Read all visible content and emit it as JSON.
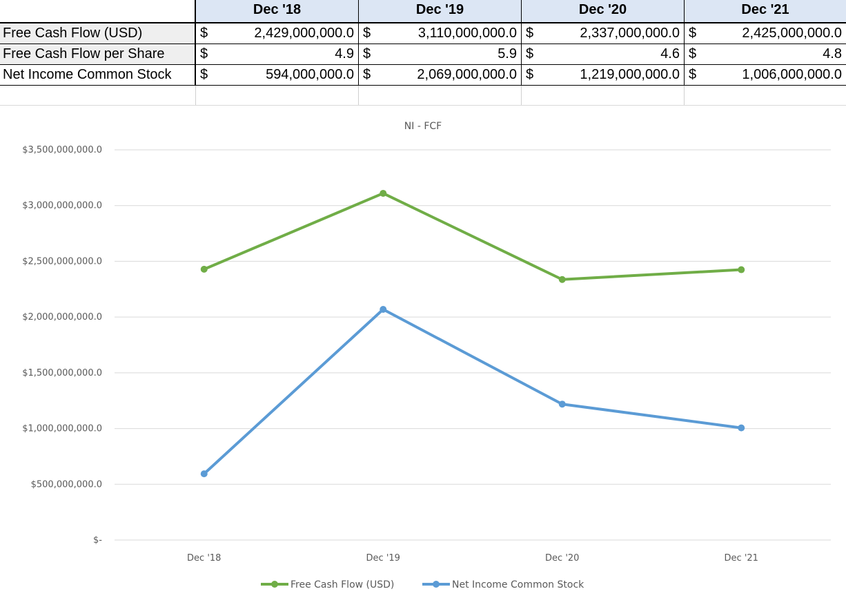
{
  "table": {
    "headers": [
      "Dec '18",
      "Dec '19",
      "Dec '20",
      "Dec '21"
    ],
    "currency_symbol": "$",
    "rows": [
      {
        "label": "Free Cash Flow (USD)",
        "values": [
          "2,429,000,000.0",
          "3,110,000,000.0",
          "2,337,000,000.0",
          "2,425,000,000.0"
        ]
      },
      {
        "label": "Free Cash Flow per Share",
        "values": [
          "4.9",
          "5.9",
          "4.6",
          "4.8"
        ]
      },
      {
        "label": "Net Income Common Stock",
        "values": [
          "594,000,000.0",
          "2,069,000,000.0",
          "1,219,000,000.0",
          "1,006,000,000.0"
        ]
      }
    ]
  },
  "chart_data": {
    "type": "line",
    "title": "NI - FCF",
    "categories": [
      "Dec '18",
      "Dec '19",
      "Dec '20",
      "Dec '21"
    ],
    "series": [
      {
        "name": "Free Cash Flow (USD)",
        "values": [
          2429000000,
          3110000000,
          2337000000,
          2425000000
        ],
        "color": "#70ad47"
      },
      {
        "name": "Net Income Common Stock",
        "values": [
          594000000,
          2069000000,
          1219000000,
          1006000000
        ],
        "color": "#5b9bd5"
      }
    ],
    "ylim": [
      0,
      3500000000
    ],
    "yticks": [
      0,
      500000000,
      1000000000,
      1500000000,
      2000000000,
      2500000000,
      3000000000,
      3500000000
    ],
    "ytick_labels": [
      "$-",
      "$500,000,000.0",
      "$1,000,000,000.0",
      "$1,500,000,000.0",
      "$2,000,000,000.0",
      "$2,500,000,000.0",
      "$3,000,000,000.0",
      "$3,500,000,000.0"
    ],
    "grid": true,
    "legend": "bottom",
    "gridline_color": "#d9d9d9"
  }
}
